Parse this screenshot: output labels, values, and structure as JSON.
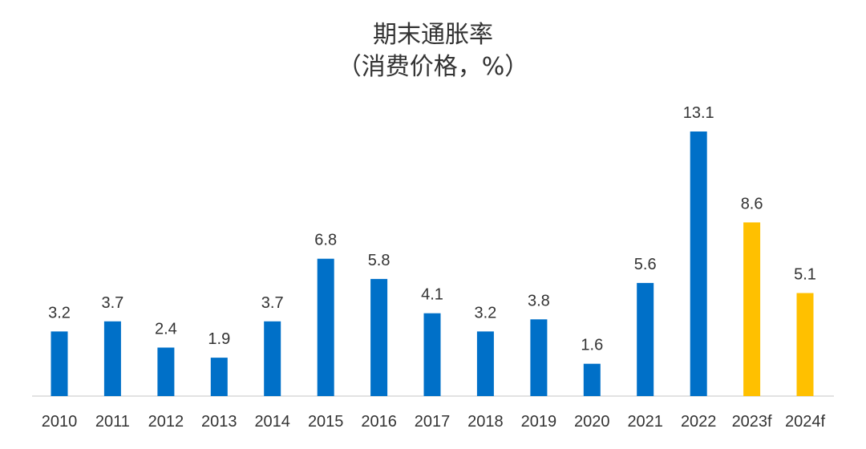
{
  "chart_data": {
    "type": "bar",
    "title": "期末通胀率",
    "subtitle": "（消费价格，%）",
    "categories": [
      "2010",
      "2011",
      "2012",
      "2013",
      "2014",
      "2015",
      "2016",
      "2017",
      "2018",
      "2019",
      "2020",
      "2021",
      "2022",
      "2023f",
      "2024f"
    ],
    "values": [
      3.2,
      3.7,
      2.4,
      1.9,
      3.7,
      6.8,
      5.8,
      4.1,
      3.2,
      3.8,
      1.6,
      5.6,
      13.1,
      8.6,
      5.1
    ],
    "value_labels": [
      "3.2",
      "3.7",
      "2.4",
      "1.9",
      "3.7",
      "6.8",
      "5.8",
      "4.1",
      "3.2",
      "3.8",
      "1.6",
      "5.6",
      "13.1",
      "8.6",
      "5.1"
    ],
    "forecast": [
      false,
      false,
      false,
      false,
      false,
      false,
      false,
      false,
      false,
      false,
      false,
      false,
      false,
      true,
      true
    ],
    "colors": {
      "actual": "#0070C8",
      "forecast": "#FFC000",
      "axis": "#D9D9D9",
      "text": "#333333"
    },
    "ylim": [
      0,
      14
    ],
    "grid": false,
    "legend": "none"
  }
}
